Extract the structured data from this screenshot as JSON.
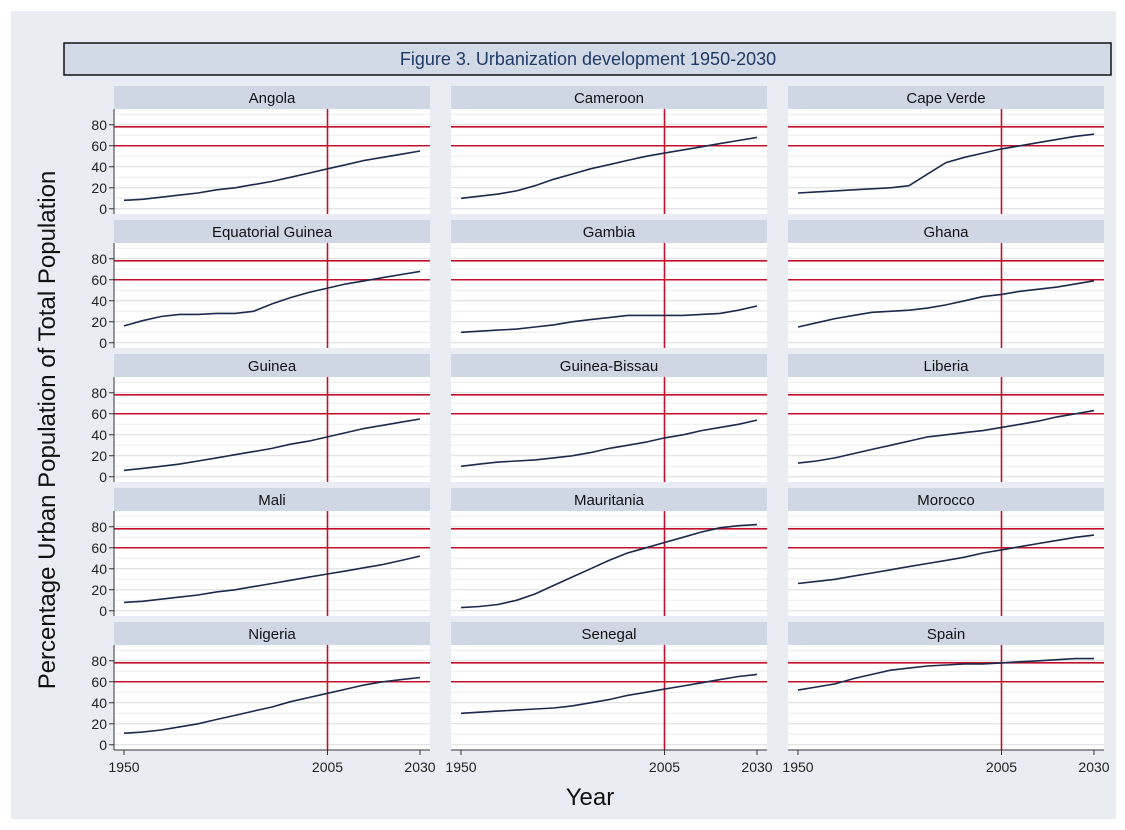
{
  "chart_data": {
    "type": "line",
    "title": "Figure 3. Urbanization development 1950-2030",
    "xlabel": "Year",
    "ylabel": "Percentage Urban Population of Total Population",
    "xlim": [
      1950,
      2030
    ],
    "ylim": [
      -5,
      95
    ],
    "x_ticks": [
      1950,
      2005,
      2030
    ],
    "y_ticks": [
      0,
      20,
      40,
      60,
      80
    ],
    "reference_lines": {
      "horizontal": [
        60,
        78
      ],
      "vertical": [
        2005
      ]
    },
    "grid": true,
    "colors": {
      "line": "#1a2a4a",
      "reference": "#c0102c",
      "strip": "#cfd6e4",
      "background": "#e9edf3"
    },
    "x": [
      1950,
      1955,
      1960,
      1965,
      1970,
      1975,
      1980,
      1985,
      1990,
      1995,
      2000,
      2005,
      2010,
      2015,
      2020,
      2025,
      2030
    ],
    "panels": [
      {
        "name": "Angola",
        "values": [
          8,
          9,
          11,
          13,
          15,
          18,
          20,
          23,
          26,
          30,
          34,
          38,
          42,
          46,
          49,
          52,
          55
        ]
      },
      {
        "name": "Cameroon",
        "values": [
          10,
          12,
          14,
          17,
          22,
          28,
          33,
          38,
          42,
          46,
          50,
          53,
          56,
          59,
          62,
          65,
          68
        ]
      },
      {
        "name": "Cape Verde",
        "values": [
          15,
          16,
          17,
          18,
          19,
          20,
          22,
          33,
          44,
          49,
          53,
          57,
          60,
          63,
          66,
          69,
          71
        ]
      },
      {
        "name": "Equatorial Guinea",
        "values": [
          16,
          21,
          25,
          27,
          27,
          28,
          28,
          30,
          37,
          43,
          48,
          52,
          56,
          59,
          62,
          65,
          68
        ]
      },
      {
        "name": "Gambia",
        "values": [
          10,
          11,
          12,
          13,
          15,
          17,
          20,
          22,
          24,
          26,
          26,
          26,
          26,
          27,
          28,
          31,
          35
        ]
      },
      {
        "name": "Ghana",
        "values": [
          15,
          19,
          23,
          26,
          29,
          30,
          31,
          33,
          36,
          40,
          44,
          46,
          49,
          51,
          53,
          56,
          59
        ]
      },
      {
        "name": "Guinea",
        "values": [
          6,
          8,
          10,
          12,
          15,
          18,
          21,
          24,
          27,
          31,
          34,
          38,
          42,
          46,
          49,
          52,
          55
        ]
      },
      {
        "name": "Guinea-Bissau",
        "values": [
          10,
          12,
          14,
          15,
          16,
          18,
          20,
          23,
          27,
          30,
          33,
          37,
          40,
          44,
          47,
          50,
          54
        ]
      },
      {
        "name": "Liberia",
        "values": [
          13,
          15,
          18,
          22,
          26,
          30,
          34,
          38,
          40,
          42,
          44,
          47,
          50,
          53,
          57,
          60,
          63
        ]
      },
      {
        "name": "Mali",
        "values": [
          8,
          9,
          11,
          13,
          15,
          18,
          20,
          23,
          26,
          29,
          32,
          35,
          38,
          41,
          44,
          48,
          52
        ]
      },
      {
        "name": "Mauritania",
        "values": [
          3,
          4,
          6,
          10,
          16,
          24,
          32,
          40,
          48,
          55,
          60,
          65,
          70,
          75,
          79,
          81,
          82
        ]
      },
      {
        "name": "Morocco",
        "values": [
          26,
          28,
          30,
          33,
          36,
          39,
          42,
          45,
          48,
          51,
          55,
          58,
          61,
          64,
          67,
          70,
          72
        ]
      },
      {
        "name": "Nigeria",
        "values": [
          11,
          12,
          14,
          17,
          20,
          24,
          28,
          32,
          36,
          41,
          45,
          49,
          53,
          57,
          60,
          62,
          64
        ]
      },
      {
        "name": "Senegal",
        "values": [
          30,
          31,
          32,
          33,
          34,
          35,
          37,
          40,
          43,
          47,
          50,
          53,
          56,
          59,
          62,
          65,
          67
        ]
      },
      {
        "name": "Spain",
        "values": [
          52,
          55,
          58,
          63,
          67,
          71,
          73,
          75,
          76,
          77,
          77,
          78,
          79,
          80,
          81,
          82,
          82
        ]
      }
    ]
  }
}
